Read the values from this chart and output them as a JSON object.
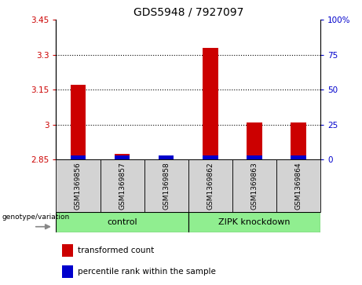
{
  "title": "GDS5948 / 7927097",
  "samples": [
    "GSM1369856",
    "GSM1369857",
    "GSM1369858",
    "GSM1369862",
    "GSM1369863",
    "GSM1369864"
  ],
  "red_values": [
    3.17,
    2.875,
    2.85,
    3.33,
    3.01,
    3.01
  ],
  "blue_pct": [
    3,
    3,
    3,
    3,
    3,
    3
  ],
  "ylim_left": [
    2.85,
    3.45
  ],
  "ylim_right": [
    0,
    100
  ],
  "yticks_left": [
    2.85,
    3.0,
    3.15,
    3.3,
    3.45
  ],
  "yticks_right": [
    0,
    25,
    50,
    75,
    100
  ],
  "ytick_labels_left": [
    "2.85",
    "3",
    "3.15",
    "3.3",
    "3.45"
  ],
  "ytick_labels_right": [
    "0",
    "25",
    "50",
    "75",
    "100%"
  ],
  "hlines": [
    3.0,
    3.15,
    3.3
  ],
  "bar_width": 0.35,
  "red_color": "#CC0000",
  "blue_color": "#0000CC",
  "bg_color": "#d3d3d3",
  "green_color": "#90EE90",
  "title_fontsize": 10,
  "tick_fontsize": 7.5,
  "sample_fontsize": 6.5,
  "group_fontsize": 8,
  "legend_fontsize": 7.5,
  "genotype_label": "genotype/variation",
  "legend_red": "transformed count",
  "legend_blue": "percentile rank within the sample",
  "control_label": "control",
  "zipk_label": "ZIPK knockdown"
}
